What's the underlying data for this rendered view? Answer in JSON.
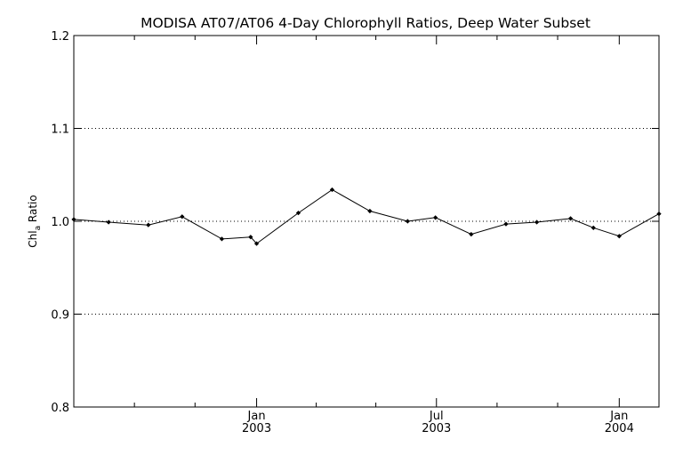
{
  "chart_data": {
    "type": "line",
    "title": "MODISA AT07/AT06 4-Day Chlorophyll Ratios, Deep Water Subset",
    "ylabel_main": "Chl",
    "ylabel_sub": "a",
    "ylabel_suffix": " Ratio",
    "xlabel": "",
    "ylim": [
      0.8,
      1.2
    ],
    "xlim": [
      "2002-07-01",
      "2004-02-10"
    ],
    "yticks": [
      {
        "value": 0.8,
        "label": "0.8"
      },
      {
        "value": 0.9,
        "label": "0.9"
      },
      {
        "value": 1.0,
        "label": "1.0"
      },
      {
        "value": 1.1,
        "label": "1.1"
      },
      {
        "value": 1.2,
        "label": "1.2"
      }
    ],
    "grid_y": [
      0.9,
      1.0,
      1.1
    ],
    "grid": "dotted horizontal",
    "xticks_major": [
      {
        "date": "2003-01-01",
        "label_month": "Jan",
        "label_year": "2003"
      },
      {
        "date": "2003-07-01",
        "label_month": "Jul",
        "label_year": "2003"
      },
      {
        "date": "2004-01-01",
        "label_month": "Jan",
        "label_year": "2004"
      }
    ],
    "xticks_minor": [
      "2002-08-31",
      "2002-10-31",
      "2003-03-02",
      "2003-05-01",
      "2003-08-31",
      "2003-10-31"
    ],
    "series": [
      {
        "color": "#000000",
        "points": [
          {
            "x": "2002-07-01",
            "y": 1.002
          },
          {
            "x": "2002-08-05",
            "y": 0.999
          },
          {
            "x": "2002-09-14",
            "y": 0.996
          },
          {
            "x": "2002-10-18",
            "y": 1.005
          },
          {
            "x": "2002-11-27",
            "y": 0.981
          },
          {
            "x": "2002-12-26",
            "y": 0.983
          },
          {
            "x": "2003-01-01",
            "y": 0.976
          },
          {
            "x": "2003-02-12",
            "y": 1.009
          },
          {
            "x": "2003-03-18",
            "y": 1.034
          },
          {
            "x": "2003-04-25",
            "y": 1.011
          },
          {
            "x": "2003-06-02",
            "y": 1.0
          },
          {
            "x": "2003-06-30",
            "y": 1.004
          },
          {
            "x": "2003-08-05",
            "y": 0.986
          },
          {
            "x": "2003-09-09",
            "y": 0.997
          },
          {
            "x": "2003-10-10",
            "y": 0.999
          },
          {
            "x": "2003-11-13",
            "y": 1.003
          },
          {
            "x": "2003-12-06",
            "y": 0.993
          },
          {
            "x": "2004-01-01",
            "y": 0.984
          },
          {
            "x": "2004-02-10",
            "y": 1.008
          }
        ]
      }
    ]
  }
}
